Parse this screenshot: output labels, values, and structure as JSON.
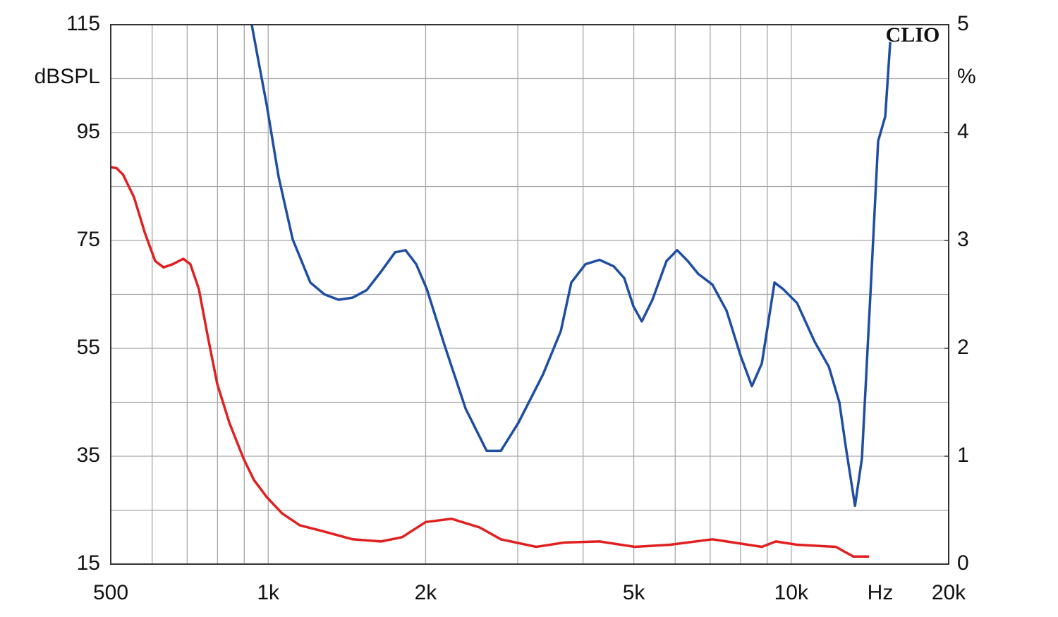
{
  "chart_data": {
    "type": "line",
    "watermark": "CLIO",
    "xlabel": "Hz",
    "ylabel": "dBSPL",
    "y2label": "%",
    "xscale": "log",
    "xlim": [
      500,
      20000
    ],
    "xticks": [
      500,
      {
        "value": 1000,
        "label": "1k"
      },
      {
        "value": 2000,
        "label": "2k"
      },
      {
        "value": 5000,
        "label": "5k"
      },
      {
        "value": 10000,
        "label": "10k"
      },
      {
        "value": 20000,
        "label": "20k"
      }
    ],
    "xgrid": [
      600,
      700,
      800,
      900,
      3000,
      4000,
      6000,
      7000,
      8000,
      9000
    ],
    "ylim": [
      15,
      115
    ],
    "yticks": [
      15,
      35,
      55,
      75,
      95,
      115
    ],
    "ygrid": [
      25,
      45,
      65,
      85,
      105
    ],
    "y2lim": [
      0,
      5
    ],
    "y2ticks": [
      0,
      1,
      2,
      3,
      4,
      5
    ],
    "series": [
      {
        "name": "red",
        "color": "#e02020",
        "axis": "y2",
        "x": [
          500,
          513,
          528,
          554,
          581,
          608,
          631,
          657,
          688,
          710,
          737,
          768,
          799,
          843,
          897,
          939,
          994,
          1063,
          1149,
          1261,
          1450,
          1643,
          1803,
          2000,
          2241,
          2537,
          2785,
          3253,
          3683,
          4300,
          5023,
          5870,
          7070,
          7757,
          8785,
          9347,
          10260,
          12170,
          13150,
          14090
        ],
        "values": [
          3.68,
          3.67,
          3.61,
          3.4,
          3.07,
          2.81,
          2.75,
          2.78,
          2.83,
          2.78,
          2.55,
          2.09,
          1.67,
          1.31,
          0.98,
          0.78,
          0.62,
          0.47,
          0.36,
          0.31,
          0.23,
          0.21,
          0.25,
          0.39,
          0.42,
          0.34,
          0.23,
          0.16,
          0.2,
          0.21,
          0.16,
          0.18,
          0.23,
          0.2,
          0.16,
          0.21,
          0.18,
          0.16,
          0.07,
          0.07
        ]
      },
      {
        "name": "blue",
        "color": "#1f4ea0",
        "axis": "y2",
        "x": [
          930,
          954,
          994,
          1047,
          1114,
          1204,
          1281,
          1363,
          1450,
          1543,
          1643,
          1748,
          1831,
          1919,
          2010,
          2173,
          2385,
          2617,
          2785,
          3009,
          3354,
          3626,
          3798,
          4042,
          4300,
          4577,
          4795,
          4992,
          5179,
          5428,
          5775,
          6052,
          6342,
          6640,
          7070,
          7521,
          8004,
          8411,
          8785,
          9290,
          9643,
          10260,
          11090,
          11800,
          12360,
          12750,
          13240,
          13650,
          14210,
          14660,
          15130,
          15460
        ],
        "values": [
          5.0,
          4.71,
          4.25,
          3.59,
          3.01,
          2.61,
          2.5,
          2.45,
          2.47,
          2.54,
          2.71,
          2.89,
          2.91,
          2.78,
          2.55,
          2.03,
          1.44,
          1.05,
          1.05,
          1.31,
          1.76,
          2.16,
          2.61,
          2.78,
          2.82,
          2.76,
          2.65,
          2.39,
          2.25,
          2.45,
          2.81,
          2.91,
          2.81,
          2.69,
          2.59,
          2.35,
          1.93,
          1.65,
          1.86,
          2.61,
          2.55,
          2.42,
          2.06,
          1.83,
          1.5,
          1.05,
          0.54,
          0.98,
          2.61,
          3.92,
          4.15,
          4.84
        ]
      }
    ]
  }
}
